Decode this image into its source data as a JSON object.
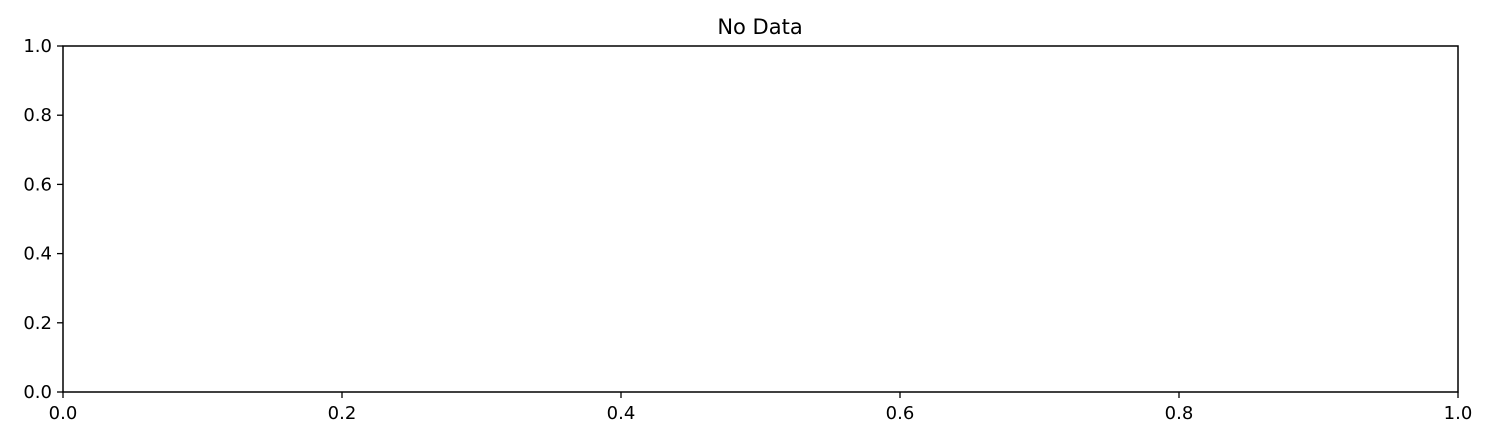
{
  "chart_data": {
    "type": "line",
    "title": "No Data",
    "xlabel": "",
    "ylabel": "",
    "xlim": [
      0.0,
      1.0
    ],
    "ylim": [
      0.0,
      1.0
    ],
    "x_ticks": [
      0.0,
      0.2,
      0.4,
      0.6,
      0.8,
      1.0
    ],
    "y_ticks": [
      0.0,
      0.2,
      0.4,
      0.6,
      0.8,
      1.0
    ],
    "x_tick_labels": [
      "0.0",
      "0.2",
      "0.4",
      "0.6",
      "0.8",
      "1.0"
    ],
    "y_tick_labels": [
      "0.0",
      "0.2",
      "0.4",
      "0.6",
      "0.8",
      "1.0"
    ],
    "series": [],
    "grid": false
  }
}
